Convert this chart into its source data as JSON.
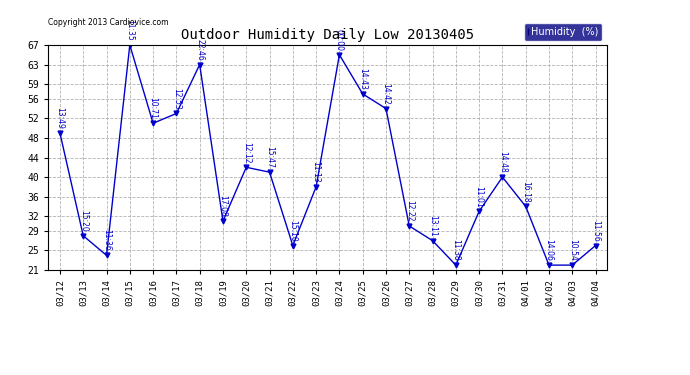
{
  "title": "Outdoor Humidity Daily Low 20130405",
  "copyright": "Copyright 2013 Cardiovice.com",
  "legend_label": "Humidity  (%)",
  "dates": [
    "03/12",
    "03/13",
    "03/14",
    "03/15",
    "03/16",
    "03/17",
    "03/18",
    "03/19",
    "03/20",
    "03/21",
    "03/22",
    "03/23",
    "03/24",
    "03/25",
    "03/26",
    "03/27",
    "03/28",
    "03/29",
    "03/30",
    "03/31",
    "04/01",
    "04/02",
    "04/03",
    "04/04"
  ],
  "values": [
    49,
    28,
    24,
    67,
    51,
    53,
    63,
    31,
    42,
    41,
    26,
    38,
    65,
    57,
    54,
    30,
    27,
    22,
    33,
    40,
    34,
    22,
    22,
    26
  ],
  "time_labels": [
    "13:49",
    "15:20",
    "11:36",
    "11:35",
    "10:71",
    "12:53",
    "22:46",
    "17:08",
    "12:12",
    "15:47",
    "15:10",
    "11:13",
    "00:00",
    "14:43",
    "14:42",
    "12:22",
    "13:11",
    "11:38",
    "11:01",
    "14:48",
    "16:18",
    "14:06",
    "10:54",
    "11:56"
  ],
  "line_color": "#0000cc",
  "marker_color": "#0000cc",
  "bg_color": "#ffffff",
  "grid_color": "#aaaaaa",
  "ylim": [
    21,
    67
  ],
  "yticks": [
    21,
    25,
    29,
    32,
    36,
    40,
    44,
    48,
    52,
    56,
    59,
    63,
    67
  ]
}
